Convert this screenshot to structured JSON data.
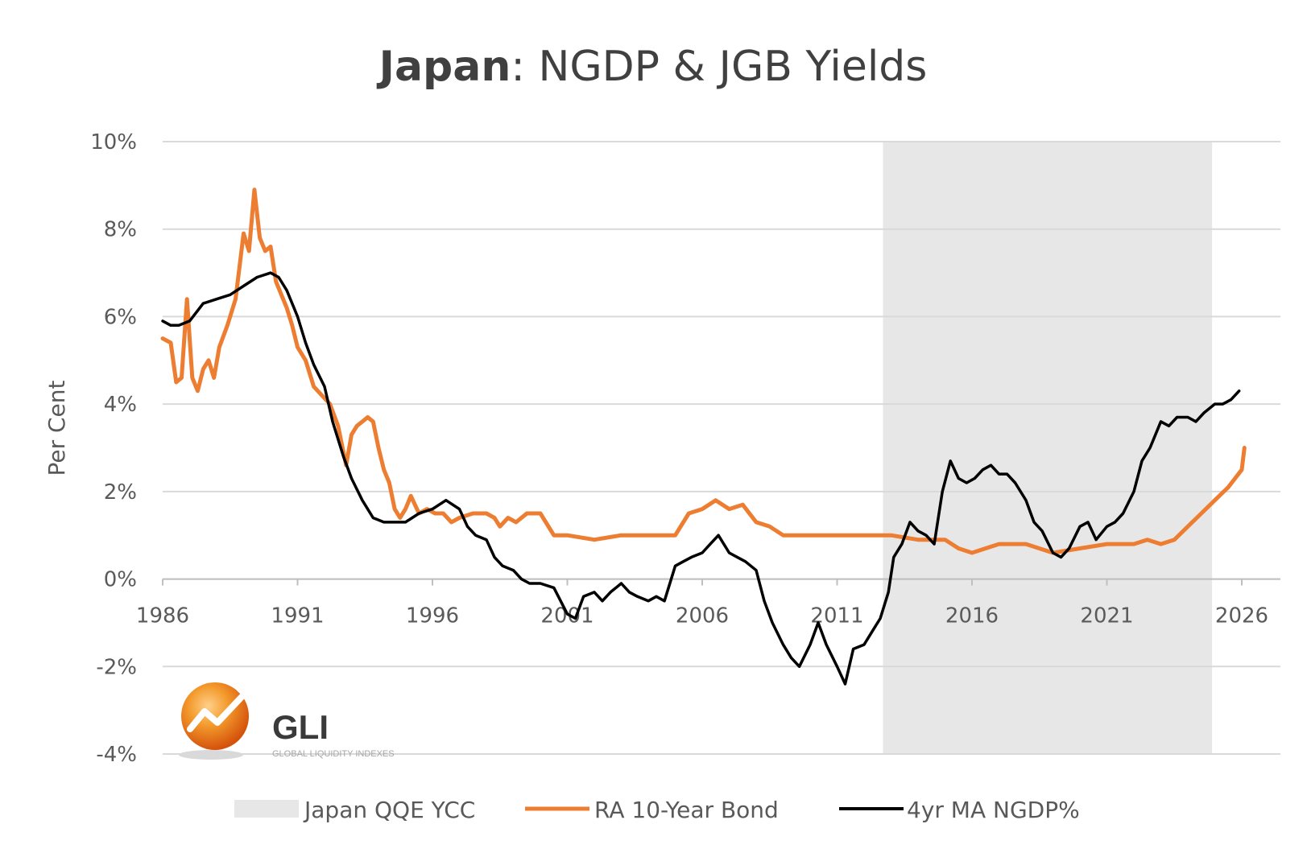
{
  "chart_data": {
    "type": "line",
    "title_bold": "Japan",
    "title_rest": ": NGDP & JGB Yields",
    "ylabel": "Per Cent",
    "xlabel": "",
    "xlim": [
      1986,
      2026.5
    ],
    "ylim": [
      -4,
      10
    ],
    "y_ticks": [
      10,
      8,
      6,
      4,
      2,
      0,
      -2,
      -4
    ],
    "y_tick_labels": [
      "10%",
      "8%",
      "6%",
      "4%",
      "2%",
      "0%",
      "-2%",
      "-4%"
    ],
    "x_ticks": [
      1986,
      1991,
      1996,
      2001,
      2006,
      2011,
      2016,
      2021,
      2026
    ],
    "x_tick_labels": [
      "1986",
      "1991",
      "1996",
      "2001",
      "2006",
      "2011",
      "2016",
      "2021",
      "2026"
    ],
    "grid": true,
    "legend_position": "bottom",
    "shaded_regions": [
      {
        "name": "Japan QQE YCC",
        "x_start": 2012.7,
        "x_end": 2024.9,
        "color": "#e7e7e7"
      }
    ],
    "series": [
      {
        "name": "RA 10-Year Bond",
        "color": "#ed7d31",
        "x": [
          1986.0,
          1986.3,
          1986.5,
          1986.7,
          1986.9,
          1987.1,
          1987.3,
          1987.5,
          1987.7,
          1987.9,
          1988.1,
          1988.4,
          1988.7,
          1989.0,
          1989.2,
          1989.4,
          1989.6,
          1989.8,
          1990.0,
          1990.2,
          1990.4,
          1990.6,
          1990.8,
          1991.0,
          1991.3,
          1991.6,
          1991.9,
          1992.2,
          1992.5,
          1992.8,
          1993.0,
          1993.2,
          1993.4,
          1993.6,
          1993.8,
          1994.0,
          1994.2,
          1994.4,
          1994.6,
          1994.8,
          1995.0,
          1995.2,
          1995.5,
          1995.8,
          1996.1,
          1996.4,
          1996.7,
          1997.0,
          1997.5,
          1998.0,
          1998.3,
          1998.5,
          1998.8,
          1999.1,
          1999.5,
          2000.0,
          2000.5,
          2001.0,
          2002.0,
          2003.0,
          2004.0,
          2005.0,
          2005.5,
          2006.0,
          2006.5,
          2007.0,
          2007.5,
          2008.0,
          2008.5,
          2009.0,
          2010.0,
          2011.0,
          2012.0,
          2013.0,
          2014.0,
          2015.0,
          2015.5,
          2016.0,
          2016.5,
          2017.0,
          2018.0,
          2019.0,
          2020.0,
          2021.0,
          2022.0,
          2022.5,
          2023.0,
          2023.5,
          2024.0,
          2024.5,
          2025.0,
          2025.5,
          2026.0,
          2026.1
        ],
        "values": [
          5.5,
          5.4,
          4.5,
          4.6,
          6.4,
          4.6,
          4.3,
          4.8,
          5.0,
          4.6,
          5.3,
          5.8,
          6.4,
          7.9,
          7.5,
          8.9,
          7.8,
          7.5,
          7.6,
          6.8,
          6.5,
          6.2,
          5.8,
          5.3,
          5.0,
          4.4,
          4.2,
          4.0,
          3.5,
          2.6,
          3.3,
          3.5,
          3.6,
          3.7,
          3.6,
          3.0,
          2.5,
          2.2,
          1.6,
          1.4,
          1.6,
          1.9,
          1.5,
          1.6,
          1.5,
          1.5,
          1.3,
          1.4,
          1.5,
          1.5,
          1.4,
          1.2,
          1.4,
          1.3,
          1.5,
          1.5,
          1.0,
          1.0,
          0.9,
          1.0,
          1.0,
          1.0,
          1.5,
          1.6,
          1.8,
          1.6,
          1.7,
          1.3,
          1.2,
          1.0,
          1.0,
          1.0,
          1.0,
          1.0,
          0.9,
          0.9,
          0.7,
          0.6,
          0.7,
          0.8,
          0.8,
          0.6,
          0.7,
          0.8,
          0.8,
          0.9,
          0.8,
          0.9,
          1.2,
          1.5,
          1.8,
          2.1,
          2.5,
          3.0
        ]
      },
      {
        "name": "4yr MA NGDP%",
        "color": "#000000",
        "x": [
          1986.0,
          1986.3,
          1986.6,
          1987.0,
          1987.5,
          1988.0,
          1988.5,
          1989.0,
          1989.5,
          1990.0,
          1990.3,
          1990.6,
          1991.0,
          1991.3,
          1991.6,
          1992.0,
          1992.3,
          1992.7,
          1993.0,
          1993.4,
          1993.8,
          1994.2,
          1994.6,
          1995.0,
          1995.5,
          1996.0,
          1996.5,
          1997.0,
          1997.3,
          1997.6,
          1998.0,
          1998.3,
          1998.6,
          1999.0,
          1999.3,
          1999.6,
          2000.0,
          2000.5,
          2001.0,
          2001.3,
          2001.6,
          2002.0,
          2002.3,
          2002.6,
          2003.0,
          2003.3,
          2003.6,
          2004.0,
          2004.3,
          2004.6,
          2005.0,
          2005.3,
          2005.6,
          2006.0,
          2006.3,
          2006.6,
          2007.0,
          2007.3,
          2007.6,
          2008.0,
          2008.3,
          2008.6,
          2009.0,
          2009.3,
          2009.6,
          2010.0,
          2010.3,
          2010.6,
          2011.0,
          2011.3,
          2011.6,
          2012.0,
          2012.3,
          2012.6,
          2012.9,
          2013.1,
          2013.4,
          2013.7,
          2014.0,
          2014.3,
          2014.6,
          2014.9,
          2015.2,
          2015.5,
          2015.8,
          2016.1,
          2016.4,
          2016.7,
          2017.0,
          2017.3,
          2017.6,
          2018.0,
          2018.3,
          2018.6,
          2019.0,
          2019.3,
          2019.6,
          2020.0,
          2020.3,
          2020.6,
          2021.0,
          2021.3,
          2021.6,
          2022.0,
          2022.3,
          2022.6,
          2023.0,
          2023.3,
          2023.6,
          2024.0,
          2024.3,
          2024.6,
          2025.0,
          2025.3,
          2025.6,
          2025.9
        ],
        "values": [
          5.9,
          5.8,
          5.8,
          5.9,
          6.3,
          6.4,
          6.5,
          6.7,
          6.9,
          7.0,
          6.9,
          6.6,
          6.0,
          5.4,
          4.9,
          4.4,
          3.6,
          2.8,
          2.3,
          1.8,
          1.4,
          1.3,
          1.3,
          1.3,
          1.5,
          1.6,
          1.8,
          1.6,
          1.2,
          1.0,
          0.9,
          0.5,
          0.3,
          0.2,
          0.0,
          -0.1,
          -0.1,
          -0.2,
          -0.8,
          -0.9,
          -0.4,
          -0.3,
          -0.5,
          -0.3,
          -0.1,
          -0.3,
          -0.4,
          -0.5,
          -0.4,
          -0.5,
          0.3,
          0.4,
          0.5,
          0.6,
          0.8,
          1.0,
          0.6,
          0.5,
          0.4,
          0.2,
          -0.5,
          -1.0,
          -1.5,
          -1.8,
          -2.0,
          -1.5,
          -1.0,
          -1.5,
          -2.0,
          -2.4,
          -1.6,
          -1.5,
          -1.2,
          -0.9,
          -0.3,
          0.5,
          0.8,
          1.3,
          1.1,
          1.0,
          0.8,
          2.0,
          2.7,
          2.3,
          2.2,
          2.3,
          2.5,
          2.6,
          2.4,
          2.4,
          2.2,
          1.8,
          1.3,
          1.1,
          0.6,
          0.5,
          0.7,
          1.2,
          1.3,
          0.9,
          1.2,
          1.3,
          1.5,
          2.0,
          2.7,
          3.0,
          3.6,
          3.5,
          3.7,
          3.7,
          3.6,
          3.8,
          4.0,
          4.0,
          4.1,
          4.3
        ]
      }
    ]
  },
  "logo": {
    "name": "GLI",
    "tagline": "GLOBAL LIQUIDITY INDEXES"
  },
  "legend": {
    "items": [
      "Japan QQE YCC",
      "RA 10-Year Bond",
      "4yr MA NGDP%"
    ]
  }
}
